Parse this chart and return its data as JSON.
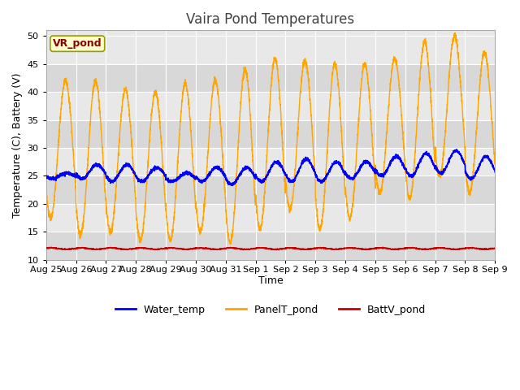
{
  "title": "Vaira Pond Temperatures",
  "xlabel": "Time",
  "ylabel": "Temperature (C), Battery (V)",
  "ylim": [
    10,
    51
  ],
  "yticks": [
    10,
    15,
    20,
    25,
    30,
    35,
    40,
    45,
    50
  ],
  "xtick_labels": [
    "Aug 25",
    "Aug 26",
    "Aug 27",
    "Aug 28",
    "Aug 29",
    "Aug 30",
    "Aug 31",
    "Sep 1",
    "Sep 2",
    "Sep 3",
    "Sep 4",
    "Sep 5",
    "Sep 6",
    "Sep 7",
    "Sep 8",
    "Sep 9"
  ],
  "water_color": "#0000ff",
  "panel_color": "#ffa500",
  "batt_color": "#cc0000",
  "bg_color": "#ffffff",
  "plot_bg_light": "#e8e8e8",
  "plot_bg_dark": "#d8d8d8",
  "legend_label_water": "Water_temp",
  "legend_label_panel": "PanelT_pond",
  "legend_label_batt": "BattV_pond",
  "annotation_text": "VR_pond",
  "annotation_color": "#8b0000",
  "annotation_bg": "#ffffcc",
  "title_fontsize": 12,
  "axis_fontsize": 9,
  "tick_fontsize": 8,
  "legend_fontsize": 9,
  "batt_base": 12.0,
  "num_days": 15,
  "panel_troughs": [
    17.5,
    14.5,
    15.0,
    13.5,
    13.5,
    15.0,
    13.0,
    15.5,
    19.0,
    15.5,
    17.5,
    22.0,
    21.0,
    25.0,
    22.0
  ],
  "panel_peaks": [
    42.0,
    42.0,
    40.5,
    40.0,
    41.5,
    42.0,
    44.0,
    46.0,
    45.5,
    45.0,
    45.0,
    46.0,
    49.0,
    50.0,
    47.0
  ],
  "water_peaks": [
    25.5,
    27.0,
    27.0,
    26.5,
    25.5,
    26.5,
    26.5,
    27.5,
    28.0,
    27.5,
    27.5,
    28.5,
    29.0,
    29.5,
    28.5
  ],
  "water_troughs": [
    24.5,
    24.5,
    24.0,
    24.0,
    24.0,
    24.0,
    23.5,
    24.0,
    24.0,
    24.0,
    24.5,
    25.0,
    25.0,
    25.5,
    24.5
  ]
}
